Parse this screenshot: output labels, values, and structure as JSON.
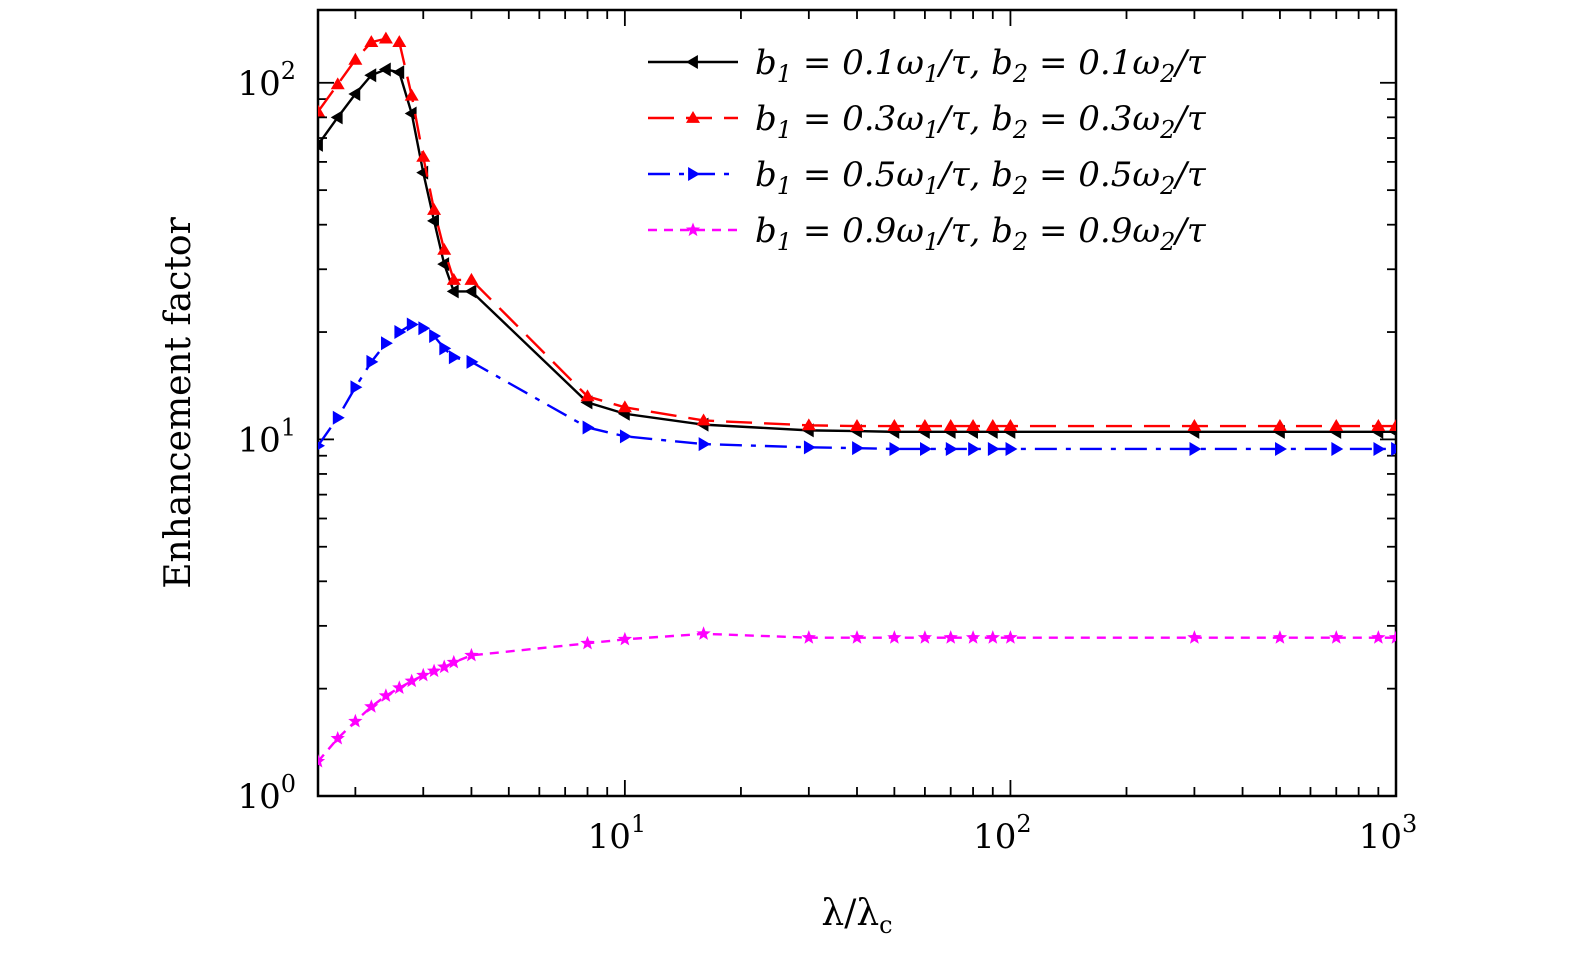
{
  "chart_data": {
    "type": "line",
    "title": "",
    "xlabel": "λ/λc",
    "ylabel": "Enhancement factor",
    "xscale": "log",
    "yscale": "log",
    "xlim": [
      1.6,
      1000
    ],
    "ylim": [
      1,
      160
    ],
    "xticks": [
      {
        "value": 10,
        "base": "10",
        "exp": "1"
      },
      {
        "value": 100,
        "base": "10",
        "exp": "2"
      },
      {
        "value": 1000,
        "base": "10",
        "exp": "3"
      }
    ],
    "yticks": [
      {
        "value": 1,
        "base": "10",
        "exp": "0"
      },
      {
        "value": 10,
        "base": "10",
        "exp": "1"
      },
      {
        "value": 100,
        "base": "10",
        "exp": "2"
      }
    ],
    "grid": false,
    "legend_position": "top-right",
    "series": [
      {
        "name": "b1 = 0.1ω1/τ, b2 = 0.1ω2/τ",
        "color": "#000000",
        "dash": "solid",
        "marker": "triangle-left",
        "x": [
          1.6,
          1.8,
          2.0,
          2.2,
          2.4,
          2.6,
          2.8,
          3.0,
          3.2,
          3.4,
          3.6,
          4.0,
          8,
          10,
          16,
          30,
          40,
          50,
          60,
          70,
          80,
          90,
          100,
          300,
          500,
          700,
          900,
          1000
        ],
        "y": [
          67,
          80,
          93,
          105,
          109,
          107,
          82,
          56,
          41,
          31,
          26,
          26,
          12.7,
          11.8,
          11.0,
          10.6,
          10.55,
          10.5,
          10.5,
          10.5,
          10.5,
          10.5,
          10.5,
          10.5,
          10.5,
          10.5,
          10.5,
          10.5
        ]
      },
      {
        "name": "b1 = 0.3ω1/τ, b2 = 0.3ω2/τ",
        "color": "#ff0000",
        "dash": "long-dash",
        "marker": "triangle-up",
        "x": [
          1.6,
          1.8,
          2.0,
          2.2,
          2.4,
          2.6,
          2.8,
          3.0,
          3.2,
          3.4,
          3.6,
          4.0,
          8,
          10,
          16,
          30,
          40,
          50,
          60,
          70,
          80,
          90,
          100,
          300,
          500,
          700,
          900,
          1000
        ],
        "y": [
          83,
          99,
          116,
          130,
          133,
          130,
          92,
          62,
          44,
          34,
          28,
          28,
          13.2,
          12.3,
          11.3,
          10.95,
          10.9,
          10.9,
          10.9,
          10.9,
          10.9,
          10.9,
          10.9,
          10.9,
          10.9,
          10.9,
          10.9,
          10.9
        ]
      },
      {
        "name": "b1 = 0.5ω1/τ, b2 = 0.5ω2/τ",
        "color": "#0000ff",
        "dash": "dash-dot",
        "marker": "triangle-right",
        "x": [
          1.6,
          1.8,
          2.0,
          2.2,
          2.4,
          2.6,
          2.8,
          3.0,
          3.2,
          3.4,
          3.6,
          4.0,
          8,
          10,
          16,
          30,
          40,
          50,
          60,
          70,
          80,
          90,
          100,
          300,
          500,
          700,
          900,
          1000
        ],
        "y": [
          9.6,
          11.5,
          14.0,
          16.5,
          18.6,
          20.0,
          21.0,
          20.5,
          19.5,
          18.0,
          17.0,
          16.5,
          10.8,
          10.2,
          9.7,
          9.5,
          9.45,
          9.4,
          9.4,
          9.4,
          9.4,
          9.4,
          9.4,
          9.4,
          9.4,
          9.4,
          9.4,
          9.4
        ]
      },
      {
        "name": "b1 = 0.9ω1/τ, b2 = 0.9ω2/τ",
        "color": "#ff00ff",
        "dash": "short-dash",
        "marker": "star",
        "x": [
          1.6,
          1.8,
          2.0,
          2.2,
          2.4,
          2.6,
          2.8,
          3.0,
          3.2,
          3.4,
          3.6,
          4.0,
          8,
          10,
          16,
          30,
          40,
          50,
          60,
          70,
          80,
          90,
          100,
          300,
          500,
          700,
          900,
          1000
        ],
        "y": [
          1.25,
          1.45,
          1.62,
          1.78,
          1.91,
          2.01,
          2.1,
          2.18,
          2.24,
          2.3,
          2.37,
          2.48,
          2.68,
          2.75,
          2.85,
          2.78,
          2.78,
          2.78,
          2.78,
          2.78,
          2.78,
          2.78,
          2.78,
          2.78,
          2.78,
          2.78,
          2.78,
          2.78
        ]
      }
    ],
    "legend": [
      {
        "b1": "b",
        "s1": "1",
        "eq1": " = 0.1ω",
        "s2": "1",
        "tail1": "/τ,  b",
        "s3": "2",
        "eq2": " = 0.1ω",
        "s4": "2",
        "tail2": "/τ"
      },
      {
        "b1": "b",
        "s1": "1",
        "eq1": " = 0.3ω",
        "s2": "1",
        "tail1": "/τ,  b",
        "s3": "2",
        "eq2": " = 0.3ω",
        "s4": "2",
        "tail2": "/τ"
      },
      {
        "b1": "b",
        "s1": "1",
        "eq1": " = 0.5ω",
        "s2": "1",
        "tail1": "/τ,  b",
        "s3": "2",
        "eq2": " = 0.5ω",
        "s4": "2",
        "tail2": "/τ"
      },
      {
        "b1": "b",
        "s1": "1",
        "eq1": " = 0.9ω",
        "s2": "1",
        "tail1": "/τ,  b",
        "s3": "2",
        "eq2": " = 0.9ω",
        "s4": "2",
        "tail2": "/τ"
      }
    ],
    "xlabel_parts": {
      "main": "λ/λ",
      "sub": "c"
    }
  }
}
